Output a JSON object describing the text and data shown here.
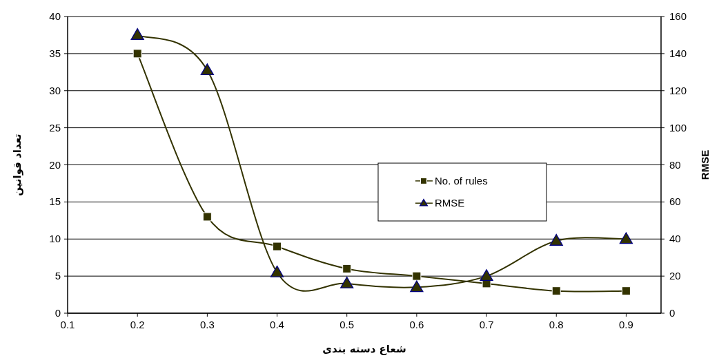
{
  "chart_data": {
    "type": "line",
    "xlabel": "شعاع دسته بندی",
    "ylabel": "تعداد قوانین",
    "y2label": "RMSE",
    "x": [
      0.2,
      0.3,
      0.4,
      0.5,
      0.6,
      0.7,
      0.8,
      0.9
    ],
    "series": [
      {
        "name": "No. of rules",
        "color": "#333300",
        "marker": "square",
        "values": [
          35,
          13,
          9,
          6,
          5,
          4,
          3,
          3
        ]
      },
      {
        "name": "RMSE",
        "color": "#333300",
        "marker": "triangle",
        "axis": "y2",
        "values": [
          150,
          131,
          22,
          16,
          14,
          20,
          39,
          40
        ]
      }
    ],
    "xlim": [
      0.1,
      0.95
    ],
    "xticks": [
      0.1,
      0.2,
      0.3,
      0.4,
      0.5,
      0.6,
      0.7,
      0.8,
      0.9
    ],
    "ylim": [
      0,
      40
    ],
    "yticks": [
      0,
      5,
      10,
      15,
      20,
      25,
      30,
      35,
      40
    ],
    "y2lim": [
      0,
      160
    ],
    "y2ticks": [
      0,
      20,
      40,
      60,
      80,
      100,
      120,
      140,
      160
    ],
    "grid": "y",
    "legend": "right",
    "line_style": "solid"
  }
}
